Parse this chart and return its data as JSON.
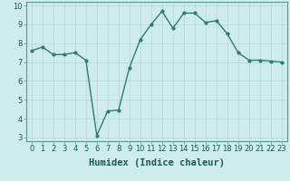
{
  "x": [
    0,
    1,
    2,
    3,
    4,
    5,
    6,
    7,
    8,
    9,
    10,
    11,
    12,
    13,
    14,
    15,
    16,
    17,
    18,
    19,
    20,
    21,
    22,
    23
  ],
  "y": [
    7.6,
    7.8,
    7.4,
    7.4,
    7.5,
    7.1,
    3.1,
    4.4,
    4.45,
    6.7,
    8.2,
    9.0,
    9.7,
    8.8,
    9.6,
    9.6,
    9.1,
    9.2,
    8.5,
    7.5,
    7.1,
    7.1,
    7.05,
    7.0
  ],
  "line_color": "#2e7d6e",
  "marker": "o",
  "marker_size": 2,
  "bg_color": "#cdecea",
  "grid_color": "#b8d8d4",
  "xlabel": "Humidex (Indice chaleur)",
  "ylim": [
    2.8,
    10.2
  ],
  "xlim": [
    -0.5,
    23.5
  ],
  "yticks": [
    3,
    4,
    5,
    6,
    7,
    8,
    9,
    10
  ],
  "xticks": [
    0,
    1,
    2,
    3,
    4,
    5,
    6,
    7,
    8,
    9,
    10,
    11,
    12,
    13,
    14,
    15,
    16,
    17,
    18,
    19,
    20,
    21,
    22,
    23
  ],
  "tick_fontsize": 6,
  "xlabel_fontsize": 7.5,
  "linewidth": 1.0
}
